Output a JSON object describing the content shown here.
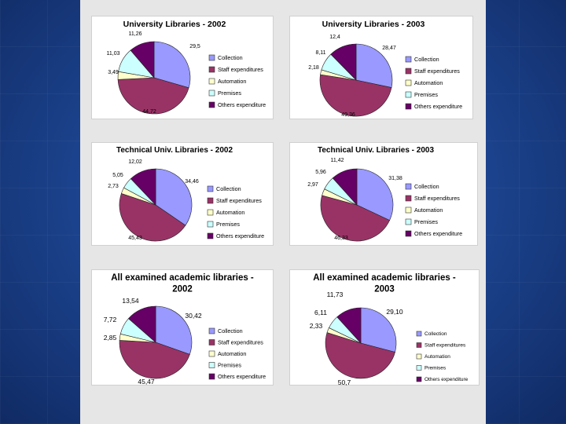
{
  "legend_labels": [
    "Collection",
    "Staff expenditures",
    "Automation",
    "Premises",
    "Others expenditure"
  ],
  "colors": [
    "#9999ff",
    "#993366",
    "#ffffcc",
    "#ccffff",
    "#660066"
  ],
  "chart_data": [
    {
      "type": "pie",
      "title": "University Libraries - 2002",
      "title_lines": [
        "University Libraries - 2002"
      ],
      "categories": [
        "Collection",
        "Staff expenditures",
        "Automation",
        "Premises",
        "Others expenditure"
      ],
      "values": [
        29.5,
        44.72,
        3.49,
        11.03,
        11.26
      ],
      "labels": [
        "29,5",
        "44,72",
        "3,49",
        "11,03",
        "11,26"
      ],
      "legend": "right"
    },
    {
      "type": "pie",
      "title": "University Libraries - 2003",
      "title_lines": [
        "University Libraries - 2003"
      ],
      "categories": [
        "Collection",
        "Staff expenditures",
        "Automation",
        "Premises",
        "Others expenditure"
      ],
      "values": [
        28.47,
        49.36,
        2.18,
        8.11,
        12.4
      ],
      "labels": [
        "28,47",
        "49,36",
        "2,18",
        "8,11",
        "12,4"
      ],
      "legend": "right"
    },
    {
      "type": "pie",
      "title": "Technical Univ. Libraries - 2002",
      "title_lines": [
        "Technical Univ. Libraries - 2002"
      ],
      "categories": [
        "Collection",
        "Staff expenditures",
        "Automation",
        "Premises",
        "Others expenditure"
      ],
      "values": [
        34.46,
        45.43,
        2.73,
        5.05,
        12.02
      ],
      "labels": [
        "34,46",
        "45,43",
        "2,73",
        "5,05",
        "12,02"
      ],
      "legend": "right"
    },
    {
      "type": "pie",
      "title": "Technical Univ. Libraries - 2003",
      "title_lines": [
        "Technical Univ. Libraries - 2003"
      ],
      "categories": [
        "Collection",
        "Staff expenditures",
        "Automation",
        "Premises",
        "Others expenditure"
      ],
      "values": [
        31.38,
        46.33,
        2.97,
        5.96,
        11.42
      ],
      "labels": [
        "31,38",
        "46,33",
        "2,97",
        "5,96",
        "11,42"
      ],
      "legend": "right"
    },
    {
      "type": "pie",
      "title": "All examined academic libraries - 2002",
      "title_lines": [
        "All examined academic libraries -",
        "2002"
      ],
      "categories": [
        "Collection",
        "Staff expenditures",
        "Automation",
        "Premises",
        "Others expenditure"
      ],
      "values": [
        30.42,
        45.47,
        2.85,
        7.72,
        13.54
      ],
      "labels": [
        "30,42",
        "45,47",
        "2,85",
        "7,72",
        "13,54"
      ],
      "legend": "right"
    },
    {
      "type": "pie",
      "title": "All examined academic libraries - 2003",
      "title_lines": [
        "All examined academic libraries -",
        "2003"
      ],
      "categories": [
        "Collection",
        "Staff expenditures",
        "Automation",
        "Premises",
        "Others expenditure"
      ],
      "values": [
        29.1,
        50.7,
        2.33,
        6.11,
        11.73
      ],
      "labels": [
        "29,10",
        "50,7",
        "2,33",
        "6,11",
        "11,73"
      ],
      "legend": "right"
    }
  ]
}
